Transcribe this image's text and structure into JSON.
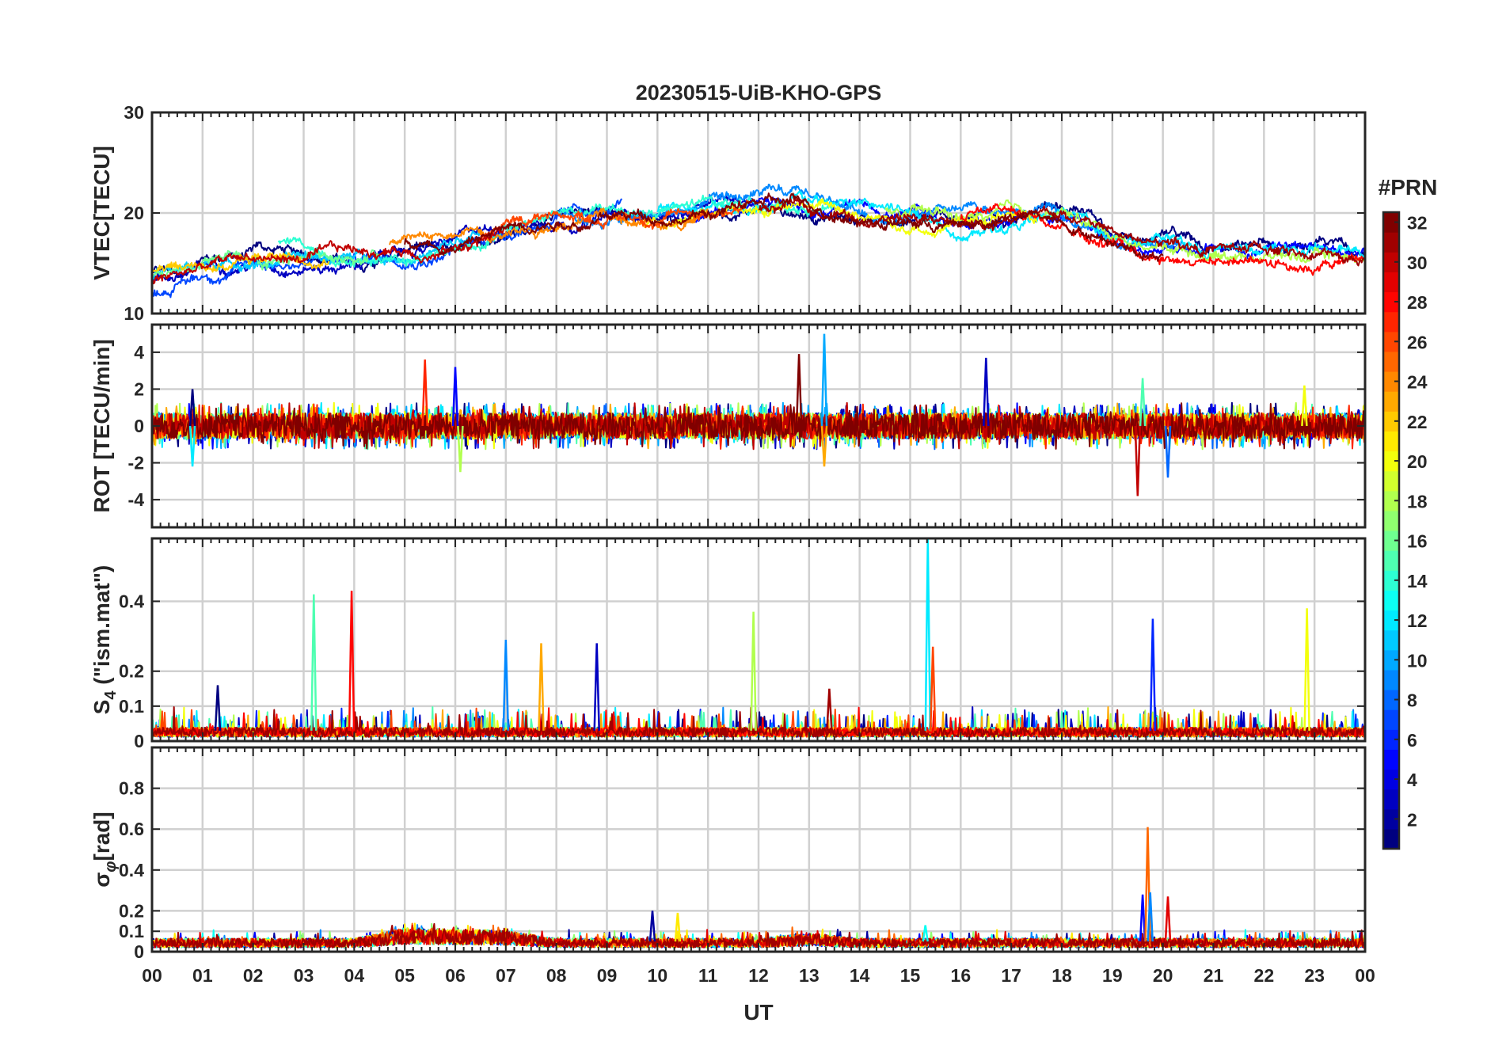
{
  "chart_data": {
    "type": "line",
    "title": "20230515-UiB-KHO-GPS",
    "xlabel": "UT",
    "xlim": [
      0,
      24
    ],
    "x_tick_labels": [
      "00",
      "01",
      "02",
      "03",
      "04",
      "05",
      "06",
      "07",
      "08",
      "09",
      "10",
      "11",
      "12",
      "13",
      "14",
      "15",
      "16",
      "17",
      "18",
      "19",
      "20",
      "21",
      "22",
      "23",
      "00"
    ],
    "grid": true,
    "colorbar": {
      "title": "#PRN",
      "range": [
        1,
        32
      ],
      "colormap": "jet",
      "tick_labels": [
        "2",
        "4",
        "6",
        "8",
        "10",
        "12",
        "14",
        "16",
        "18",
        "20",
        "22",
        "24",
        "26",
        "28",
        "30",
        "32"
      ],
      "placement": "right"
    },
    "panels": [
      {
        "id": "vtec",
        "ylabel": "VTEC[TECU]",
        "ylim": [
          10,
          30
        ],
        "y_tick_labels": [
          "10",
          "20",
          "30"
        ],
        "series_profile": {
          "baseline": [
            [
              0,
              13.5
            ],
            [
              2,
              15.5
            ],
            [
              4,
              15.5
            ],
            [
              6,
              17
            ],
            [
              8,
              20
            ],
            [
              10,
              20
            ],
            [
              12,
              21
            ],
            [
              14,
              20
            ],
            [
              16,
              19
            ],
            [
              18,
              19.5
            ],
            [
              19.5,
              17
            ],
            [
              21,
              16.5
            ],
            [
              23,
              16
            ],
            [
              24,
              16
            ]
          ],
          "spread": 3.5
        },
        "series": [
          {
            "prn": 1,
            "x_range": [
              0,
              24
            ]
          },
          {
            "prn": 3,
            "x_range": [
              0,
              12.2
            ]
          },
          {
            "prn": 5,
            "x_range": [
              10.5,
              24
            ]
          },
          {
            "prn": 7,
            "x_range": [
              0,
              9.3
            ]
          },
          {
            "prn": 9,
            "x_range": [
              8,
              20.5
            ]
          },
          {
            "prn": 11,
            "x_range": [
              0,
              6.5
            ]
          },
          {
            "prn": 12,
            "x_range": [
              10,
              24
            ]
          },
          {
            "prn": 14,
            "x_range": [
              2.5,
              13.5
            ]
          },
          {
            "prn": 16,
            "x_range": [
              0,
              4.5
            ]
          },
          {
            "prn": 18,
            "x_range": [
              14.5,
              24
            ]
          },
          {
            "prn": 20,
            "x_range": [
              9.7,
              17.5
            ]
          },
          {
            "prn": 22,
            "x_range": [
              0,
              3.5
            ]
          },
          {
            "prn": 24,
            "x_range": [
              4.7,
              11
            ]
          },
          {
            "prn": 26,
            "x_range": [
              6.5,
              11.8
            ]
          },
          {
            "prn": 28,
            "x_range": [
              16,
              24
            ]
          },
          {
            "prn": 30,
            "x_range": [
              0,
              7
            ]
          },
          {
            "prn": 31,
            "x_range": [
              12,
              24
            ]
          },
          {
            "prn": 32,
            "x_range": [
              5,
              20
            ]
          }
        ]
      },
      {
        "id": "rot",
        "ylabel": "ROT [TECU/min]",
        "ylim": [
          -5.5,
          5.5
        ],
        "y_tick_labels": [
          "-4",
          "-2",
          "0",
          "2",
          "4"
        ],
        "series_profile": {
          "baseline": [
            [
              0,
              0
            ],
            [
              24,
              0
            ]
          ],
          "spread": 0.7
        },
        "spikes": [
          {
            "x": 0.8,
            "y": 2.0
          },
          {
            "x": 0.8,
            "y": -2.2
          },
          {
            "x": 5.4,
            "y": 3.6
          },
          {
            "x": 6.0,
            "y": 3.2
          },
          {
            "x": 6.1,
            "y": -2.5
          },
          {
            "x": 12.8,
            "y": 3.9
          },
          {
            "x": 13.3,
            "y": 5.0
          },
          {
            "x": 13.3,
            "y": -2.2
          },
          {
            "x": 16.5,
            "y": 3.7
          },
          {
            "x": 19.6,
            "y": 2.6
          },
          {
            "x": 19.5,
            "y": -3.8
          },
          {
            "x": 20.1,
            "y": -2.8
          },
          {
            "x": 22.8,
            "y": 2.2
          }
        ],
        "series": [
          {
            "prn": 1
          },
          {
            "prn": 3
          },
          {
            "prn": 5
          },
          {
            "prn": 8
          },
          {
            "prn": 10
          },
          {
            "prn": 12
          },
          {
            "prn": 15
          },
          {
            "prn": 18
          },
          {
            "prn": 20
          },
          {
            "prn": 23
          },
          {
            "prn": 27
          },
          {
            "prn": 30
          },
          {
            "prn": 32
          }
        ]
      },
      {
        "id": "s4",
        "ylabel": "S4 (\"ism.mat\")",
        "ylabel_main": "S",
        "ylabel_sub": "4",
        "ylabel_rest": " (\"ism.mat\")",
        "ylim": [
          0,
          0.58
        ],
        "y_tick_labels": [
          "0",
          "0.1",
          "0.2",
          "0.4"
        ],
        "series_profile": {
          "baseline": [
            [
              0,
              0.03
            ],
            [
              24,
              0.03
            ]
          ],
          "spread": 0.04
        },
        "spikes": [
          {
            "x": 1.3,
            "y": 0.16
          },
          {
            "x": 3.2,
            "y": 0.42
          },
          {
            "x": 3.95,
            "y": 0.43
          },
          {
            "x": 7.0,
            "y": 0.29
          },
          {
            "x": 7.7,
            "y": 0.28
          },
          {
            "x": 8.8,
            "y": 0.28
          },
          {
            "x": 11.9,
            "y": 0.37
          },
          {
            "x": 13.4,
            "y": 0.15
          },
          {
            "x": 15.35,
            "y": 0.58
          },
          {
            "x": 15.45,
            "y": 0.27
          },
          {
            "x": 19.8,
            "y": 0.35
          },
          {
            "x": 22.85,
            "y": 0.38
          }
        ],
        "series": [
          {
            "prn": 1
          },
          {
            "prn": 3
          },
          {
            "prn": 6
          },
          {
            "prn": 9
          },
          {
            "prn": 12
          },
          {
            "prn": 15
          },
          {
            "prn": 18
          },
          {
            "prn": 20
          },
          {
            "prn": 23
          },
          {
            "prn": 26
          },
          {
            "prn": 28
          },
          {
            "prn": 31
          }
        ]
      },
      {
        "id": "sigma_phi",
        "ylabel": "σφ[rad]",
        "ylabel_main": "σ",
        "ylabel_sub": "φ",
        "ylabel_rest": "[rad]",
        "ylim": [
          0,
          1.0
        ],
        "y_tick_labels": [
          "0",
          "0.1",
          "0.2",
          "0.4",
          "0.6",
          "0.8"
        ],
        "series_profile": {
          "baseline": [
            [
              0,
              0.05
            ],
            [
              4,
              0.05
            ],
            [
              5,
              0.09
            ],
            [
              7,
              0.08
            ],
            [
              8,
              0.05
            ],
            [
              12,
              0.05
            ],
            [
              13,
              0.07
            ],
            [
              14,
              0.05
            ],
            [
              24,
              0.05
            ]
          ],
          "spread": 0.03
        },
        "spikes": [
          {
            "x": 9.9,
            "y": 0.2
          },
          {
            "x": 10.4,
            "y": 0.19
          },
          {
            "x": 19.6,
            "y": 0.28
          },
          {
            "x": 19.7,
            "y": 0.61
          },
          {
            "x": 19.75,
            "y": 0.29
          },
          {
            "x": 20.1,
            "y": 0.27
          },
          {
            "x": 15.3,
            "y": 0.13
          }
        ],
        "series": [
          {
            "prn": 2
          },
          {
            "prn": 5
          },
          {
            "prn": 9
          },
          {
            "prn": 13
          },
          {
            "prn": 17
          },
          {
            "prn": 21
          },
          {
            "prn": 25
          },
          {
            "prn": 29
          },
          {
            "prn": 31
          }
        ]
      }
    ]
  }
}
